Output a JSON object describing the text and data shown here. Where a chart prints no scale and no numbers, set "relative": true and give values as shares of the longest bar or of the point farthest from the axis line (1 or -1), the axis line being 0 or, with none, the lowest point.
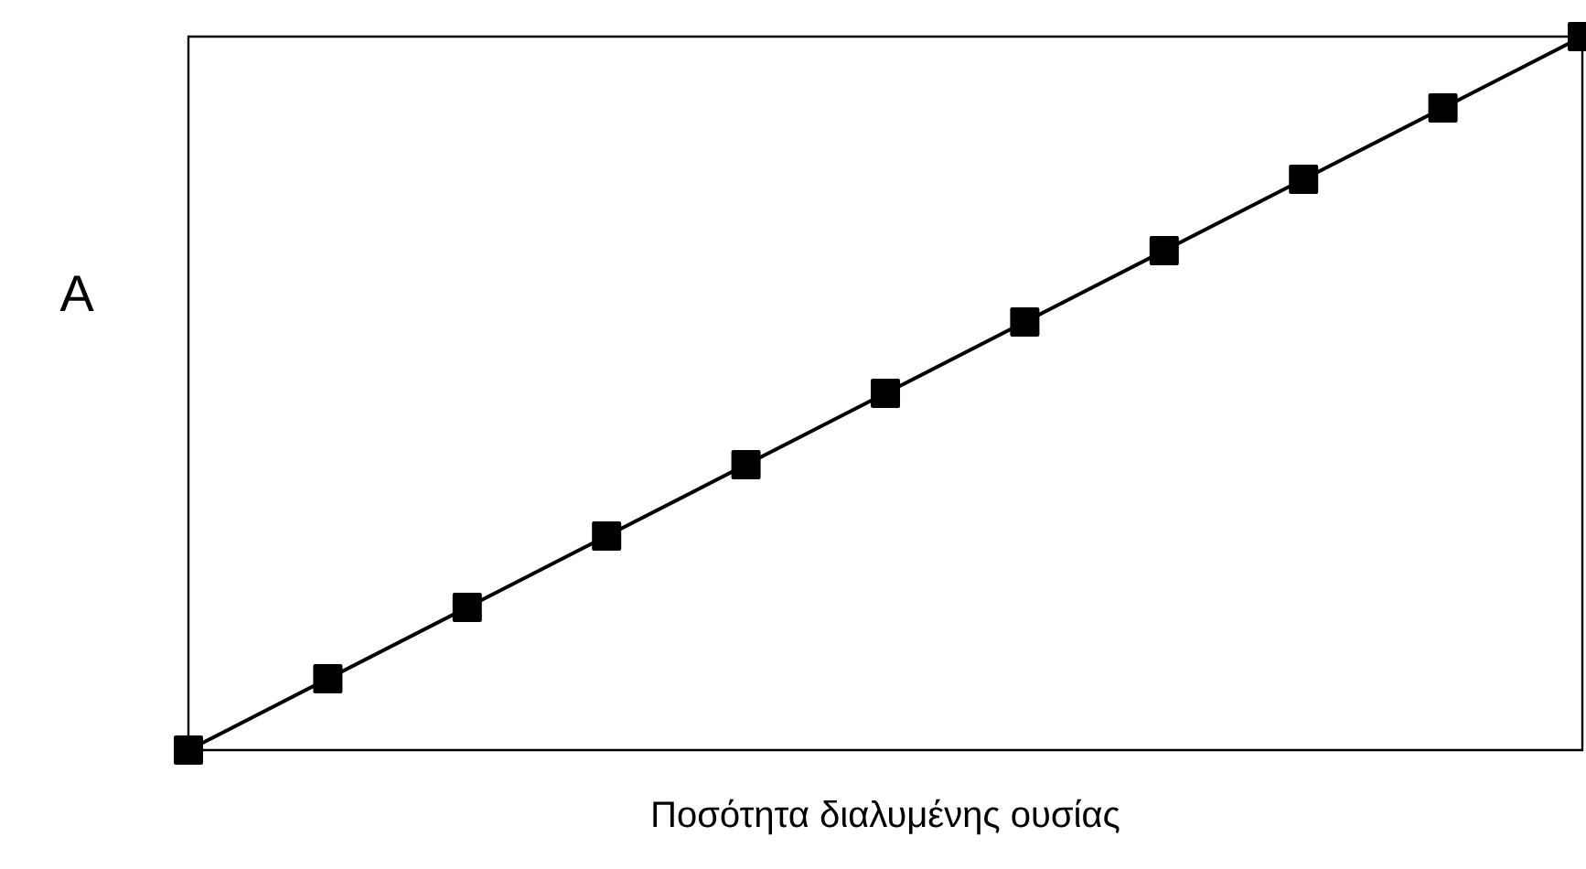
{
  "chart_data": {
    "type": "line",
    "xlabel": "Ποσότητα διαλυμένης ουσίας",
    "ylabel": "A",
    "categories": [
      null,
      null,
      null,
      null,
      null,
      null,
      null,
      null,
      null,
      null,
      null
    ],
    "values": [
      0,
      0.1,
      0.2,
      0.3,
      0.4,
      0.5,
      0.6,
      0.7,
      0.8,
      0.9,
      1
    ],
    "color": "#000000",
    "relative": true,
    "marker": "square",
    "line_style": "solid"
  }
}
